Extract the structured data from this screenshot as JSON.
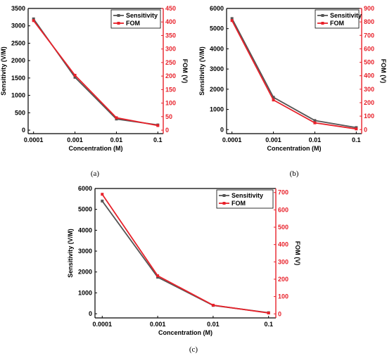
{
  "colors": {
    "sensitivity": "#555555",
    "fom": "#e8212a",
    "axis_left": "#000000",
    "axis_right": "#e8212a"
  },
  "chart_data": [
    {
      "type": "line",
      "caption": "(a)",
      "x": [
        "0.0001",
        "0.001",
        "0.01",
        "0.1"
      ],
      "xlabel": "Concentration (M)",
      "ylabel": "Sensitivity (V/M)",
      "y2label": "FOM (V)",
      "ylim": [
        -100,
        3500
      ],
      "yticks": [
        "0",
        "500",
        "1000",
        "1500",
        "2000",
        "2500",
        "3000",
        "3500"
      ],
      "y2lim": [
        -12.857,
        450
      ],
      "y2ticks": [
        "0",
        "50",
        "100",
        "150",
        "200",
        "250",
        "300",
        "350",
        "400",
        "450"
      ],
      "legend": "top-right",
      "series": [
        {
          "name": "Sensitivity",
          "axis": "left",
          "values": [
            3200,
            1520,
            320,
            150
          ]
        },
        {
          "name": "FOM",
          "axis": "right",
          "values": [
            405,
            203,
            46,
            17
          ]
        }
      ]
    },
    {
      "type": "line",
      "caption": "(b)",
      "x": [
        "0.0001",
        "0.001",
        "0.01",
        "0.1"
      ],
      "xlabel": "Concentration (M)",
      "ylabel": "Sensitivity (V/M)",
      "y2label": "FOM (V)",
      "ylim": [
        -200,
        6000
      ],
      "yticks": [
        "0",
        "1000",
        "2000",
        "3000",
        "4000",
        "5000",
        "6000"
      ],
      "y2lim": [
        -30,
        900
      ],
      "y2ticks": [
        "0",
        "100",
        "200",
        "300",
        "400",
        "500",
        "600",
        "700",
        "800",
        "900"
      ],
      "legend": "top-right",
      "series": [
        {
          "name": "Sensitivity",
          "axis": "left",
          "values": [
            5500,
            1600,
            450,
            100
          ]
        },
        {
          "name": "FOM",
          "axis": "right",
          "values": [
            810,
            220,
            50,
            5
          ]
        }
      ]
    },
    {
      "type": "line",
      "caption": "(c)",
      "x": [
        "0.0001",
        "0.001",
        "0.01",
        "0.1"
      ],
      "xlabel": "Concentration (M)",
      "ylabel": "Sensitivity (V/M)",
      "y2label": "FOM (V)",
      "ylim": [
        -200,
        6000
      ],
      "yticks": [
        "0",
        "1000",
        "2000",
        "3000",
        "4000",
        "5000",
        "6000"
      ],
      "y2lim": [
        -23.33,
        723.33
      ],
      "y2ticks": [
        "0",
        "100",
        "200",
        "300",
        "400",
        "500",
        "600",
        "700"
      ],
      "legend": "top-right",
      "series": [
        {
          "name": "Sensitivity",
          "axis": "left",
          "values": [
            5400,
            1750,
            400,
            50
          ]
        },
        {
          "name": "FOM",
          "axis": "right",
          "values": [
            690,
            220,
            50,
            5
          ]
        }
      ]
    }
  ]
}
